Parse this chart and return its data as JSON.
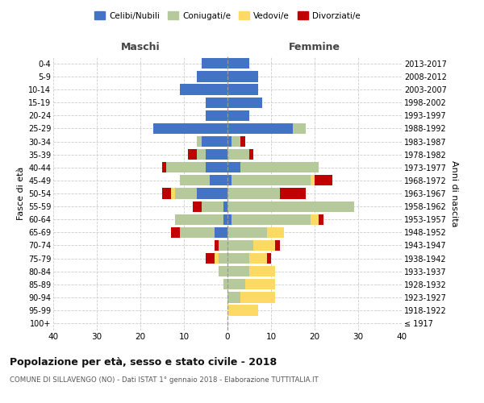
{
  "age_groups": [
    "100+",
    "95-99",
    "90-94",
    "85-89",
    "80-84",
    "75-79",
    "70-74",
    "65-69",
    "60-64",
    "55-59",
    "50-54",
    "45-49",
    "40-44",
    "35-39",
    "30-34",
    "25-29",
    "20-24",
    "15-19",
    "10-14",
    "5-9",
    "0-4"
  ],
  "birth_years": [
    "≤ 1917",
    "1918-1922",
    "1923-1927",
    "1928-1932",
    "1933-1937",
    "1938-1942",
    "1943-1947",
    "1948-1952",
    "1953-1957",
    "1958-1962",
    "1963-1967",
    "1968-1972",
    "1973-1977",
    "1978-1982",
    "1983-1987",
    "1988-1992",
    "1993-1997",
    "1998-2002",
    "2003-2007",
    "2008-2012",
    "2013-2017"
  ],
  "colors": {
    "celibi": "#4472C4",
    "coniugati": "#B5C99A",
    "vedovi": "#FFD966",
    "divorziati": "#C00000"
  },
  "maschi": {
    "celibi": [
      0,
      0,
      0,
      0,
      0,
      0,
      0,
      3,
      1,
      1,
      7,
      4,
      5,
      5,
      6,
      17,
      5,
      5,
      11,
      7,
      6
    ],
    "coniugati": [
      0,
      0,
      0,
      1,
      2,
      2,
      2,
      8,
      11,
      5,
      5,
      7,
      9,
      2,
      1,
      0,
      0,
      0,
      0,
      0,
      0
    ],
    "vedovi": [
      0,
      0,
      0,
      0,
      0,
      1,
      0,
      0,
      0,
      0,
      1,
      0,
      0,
      0,
      0,
      0,
      0,
      0,
      0,
      0,
      0
    ],
    "divorziati": [
      0,
      0,
      0,
      0,
      0,
      2,
      1,
      2,
      0,
      2,
      2,
      0,
      1,
      2,
      0,
      0,
      0,
      0,
      0,
      0,
      0
    ]
  },
  "femmine": {
    "celibi": [
      0,
      0,
      0,
      0,
      0,
      0,
      0,
      0,
      1,
      0,
      0,
      1,
      3,
      0,
      1,
      15,
      5,
      8,
      7,
      7,
      5
    ],
    "coniugati": [
      0,
      0,
      3,
      4,
      5,
      5,
      6,
      9,
      18,
      29,
      12,
      18,
      18,
      5,
      2,
      3,
      0,
      0,
      0,
      0,
      0
    ],
    "vedovi": [
      0,
      7,
      8,
      7,
      6,
      4,
      5,
      4,
      2,
      0,
      0,
      1,
      0,
      0,
      0,
      0,
      0,
      0,
      0,
      0,
      0
    ],
    "divorziati": [
      0,
      0,
      0,
      0,
      0,
      1,
      1,
      0,
      1,
      0,
      6,
      4,
      0,
      1,
      1,
      0,
      0,
      0,
      0,
      0,
      0
    ]
  },
  "xlim": 40,
  "title": "Popolazione per età, sesso e stato civile - 2018",
  "subtitle": "COMUNE DI SILLAVENGO (NO) - Dati ISTAT 1° gennaio 2018 - Elaborazione TUTTITALIA.IT",
  "ylabel_left": "Fasce di età",
  "ylabel_right": "Anni di nascita",
  "xlabel_maschi": "Maschi",
  "xlabel_femmine": "Femmine",
  "legend_labels": [
    "Celibi/Nubili",
    "Coniugati/e",
    "Vedovi/e",
    "Divorziati/e"
  ],
  "background_color": "#ffffff",
  "grid_color": "#cccccc"
}
